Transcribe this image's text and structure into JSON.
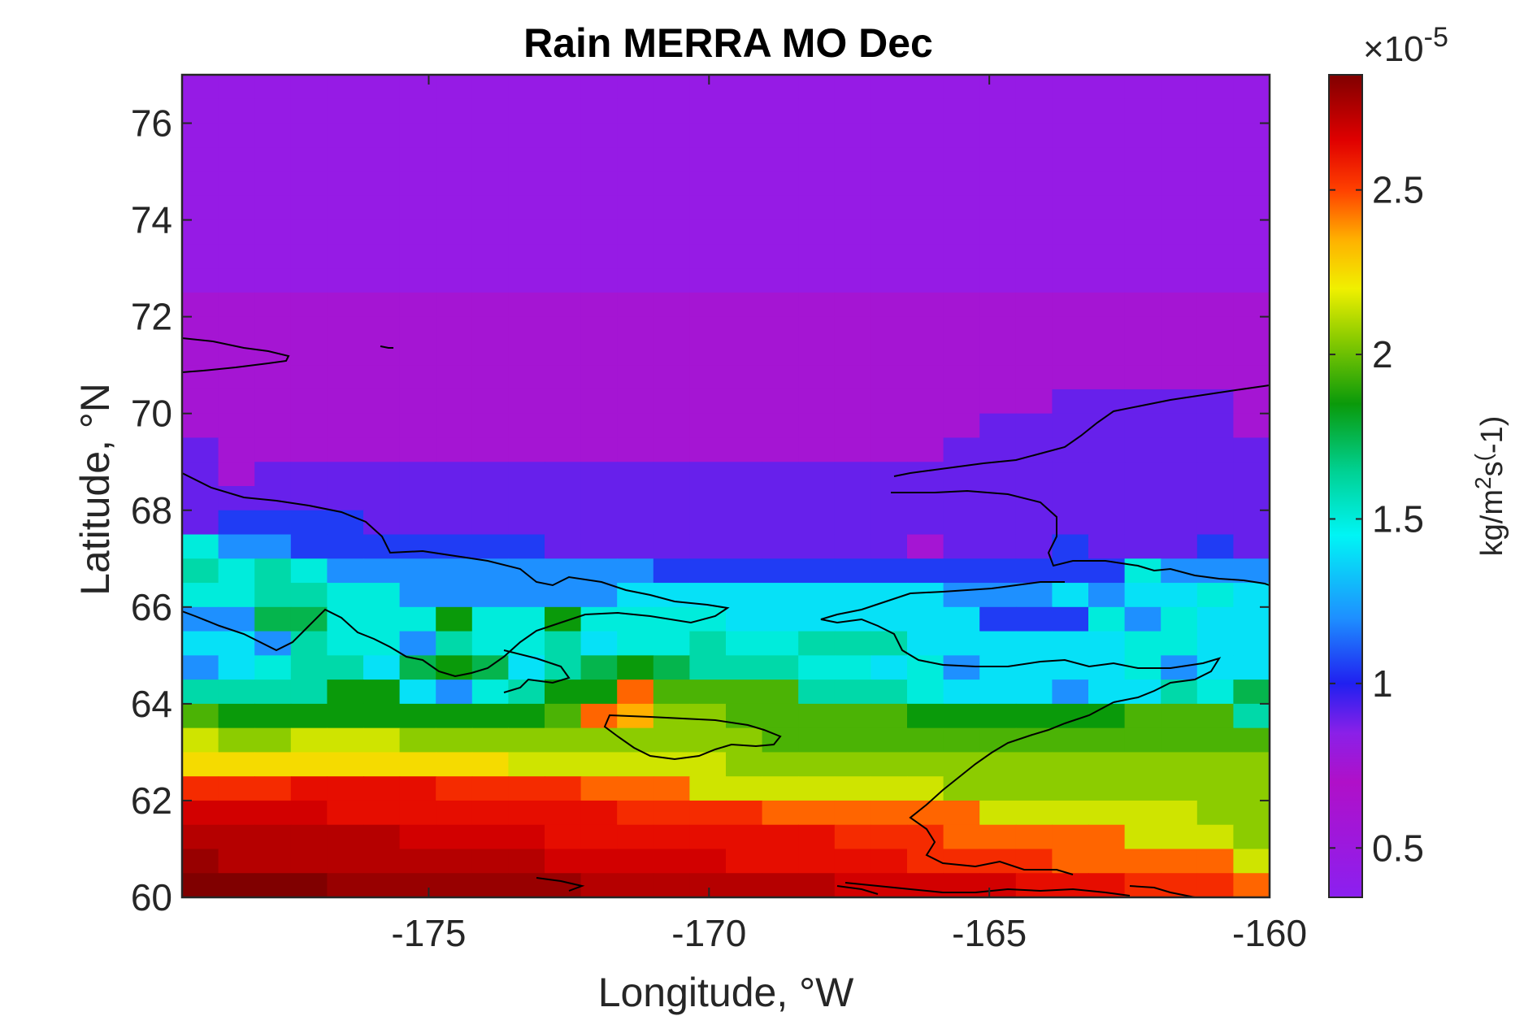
{
  "chart_data": {
    "type": "heatmap",
    "title": "Rain MERRA MO Dec",
    "xlabel": "Longitude, °W",
    "ylabel": "Latitude, °N",
    "xlim": [
      -179.4,
      -160
    ],
    "ylim": [
      60,
      77
    ],
    "xticks": [
      -175,
      -170,
      -165,
      -160
    ],
    "xtick_labels": [
      "-175",
      "-170",
      "-165",
      "-160"
    ],
    "yticks": [
      60,
      62,
      64,
      66,
      68,
      70,
      72,
      74,
      76
    ],
    "ytick_labels": [
      "60",
      "62",
      "64",
      "66",
      "68",
      "70",
      "72",
      "74",
      "76"
    ],
    "grid": false,
    "colormap": "spectral (purple-blue-cyan-green-yellow-red-darkred)",
    "colorbar": {
      "label": "kg/m²s^(-1)",
      "label_parts": [
        "kg/m",
        "2",
        "s",
        "(",
        "-1)"
      ],
      "exponent_prefix": "×10",
      "exponent": "-5",
      "range": [
        0.35,
        2.85
      ],
      "ticks": [
        0.5,
        1,
        1.5,
        2,
        2.5
      ],
      "tick_labels": [
        "0.5",
        "1",
        "1.5",
        "2",
        "2.5"
      ],
      "placement": "right"
    },
    "rows_note": "rows listed from north (top) to south (bottom); columns west to east",
    "lat_rows": [
      "AAAAAAAAAAAAAAAAAAAAAAAAAAAAAA",
      "AAAAAAAAAAAAAAAAAAAAAAAAAAAAAA",
      "AAAAAAAAAAAAAAAAAAAAAAAAAAAAAA",
      "AAAAAAAAAAAAAAAAAAAAAAAAAAAAAA",
      "AAAAAAAAAAAAAAAAAAAAAAAAAAAAAA",
      "AAAAAAAAAAAAAAAAAAAAAAAAAAAAAA",
      "AAAAAAAAAAAAAAAAAAAAAAAAAAAAAA",
      "AAAAAAAAAAAAAAAAAAAAAAAAAAAAAA",
      "AAAAAAAAAAAAAAAAAAAAAAAAAAAAAA",
      "BBBBBBBBBBBBBBBBBBBBBBBBBBBBBB",
      "BBBBBBBBBBBBBBBBBBBBBBBBBBBBBB",
      "BBBBBBBBBBBBBBBBBBBBBBBBBBBBBB",
      "BBBBBBBBBBBBBBBBBBBBBBBBBBBBBB",
      "BBBBBBBBBBBBBBBBBBBBBBBBCCCCCB",
      "BBBBBBBBBBBBBBBBBBBBBBCCCCCCCB",
      "CBBBBBBBBBBBBBBBBBBBBCCCCCCCCC",
      "CBCCCCCCCCCCCCCCCCCCCCCCCCCCCC",
      "CCCCCCCCCCCCCCCCCCCCCCCCCCCCCC",
      "CDDDDCCCCCCCCCCCCCCCCCCCCCCCCC",
      "GEEDDDDDDDCCCCCCCCCCBCCCDCCCDC",
      "HGHGEEEEEEEEEDDDDDDDDDDDDDGEEE",
      "GGHHGGEEEEEEFFFFFFFFFEEEFEFFGF",
      "EEIIGGGJGGJGGGGFFFFFFFDDDGEGFF",
      "FFEHGGEHGGHFGGHGGHHHFFFFFFGGFF",
      "EFGHHFIJIFHIJIHHHGGFGEFFFFGEFF",
      "HHHHJJFEGHJJPKKKKHHHGFFFEFFHGI",
      "KJJJJJJJJJKPOLLKKKKKJJJJJJKKKH",
      "MLLMMMLLLLLLLLLLKKKKKKKKKKKKKK",
      "NNNNNNNNNMMMMMMLLLLLLLLLLLLLLL",
      "QQQRRRRQQQQPPPMMMMMMMLLLLLLLLL",
      "SSSSRRRRRRRRQQQQPPPPPPMMMMMMLL",
      "TTTTTTSSSSRRRRRRRRQQQPPPPPMMML",
      "UTTTTTTTTTSSSSSRRRRRQQQQPPPPPM",
      "VVVVUUUUUUUTTTTTTTSSSSSRRRQQQP"
    ],
    "color_key": {
      "A": 0.45,
      "B": 0.6,
      "C": 0.9,
      "D": 1.05,
      "E": 1.2,
      "F": 1.4,
      "G": 1.5,
      "H": 1.6,
      "I": 1.75,
      "J": 1.85,
      "K": 1.95,
      "L": 2.05,
      "M": 2.15,
      "N": 2.25,
      "O": 2.35,
      "P": 2.45,
      "Q": 2.55,
      "R": 2.62,
      "S": 2.68,
      "T": 2.74,
      "U": 2.8,
      "V": 2.85
    }
  }
}
